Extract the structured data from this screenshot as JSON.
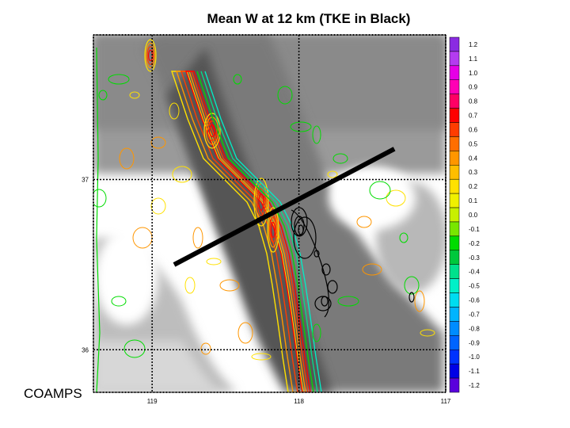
{
  "chart_data": {
    "type": "heatmap",
    "title": "Mean W at 12 km (TKE in Black)",
    "footer_label": "COAMPS",
    "x_axis": {
      "ticks": [
        {
          "label": "119",
          "lon": 119
        },
        {
          "label": "118",
          "lon": 118
        },
        {
          "label": "117",
          "lon": 117
        }
      ],
      "lim": [
        119.4,
        117
      ]
    },
    "y_axis": {
      "ticks": [
        {
          "label": "37",
          "lat": 37
        },
        {
          "label": "36",
          "lat": 36
        }
      ],
      "lim": [
        35.75,
        37.85
      ]
    },
    "grid": true,
    "colorbar": {
      "position": "right",
      "levels": [
        {
          "label": "1.2",
          "value": 1.2,
          "color": "#8a2be2"
        },
        {
          "label": "1.1",
          "value": 1.1,
          "color": "#b43cf0"
        },
        {
          "label": "1.0",
          "value": 1.0,
          "color": "#e600e6"
        },
        {
          "label": "0.9",
          "value": 0.9,
          "color": "#ff00b4"
        },
        {
          "label": "0.8",
          "value": 0.8,
          "color": "#ff0064"
        },
        {
          "label": "0.7",
          "value": 0.7,
          "color": "#ff0000"
        },
        {
          "label": "0.6",
          "value": 0.6,
          "color": "#ff3c00"
        },
        {
          "label": "0.5",
          "value": 0.5,
          "color": "#ff6e00"
        },
        {
          "label": "0.4",
          "value": 0.4,
          "color": "#ff9600"
        },
        {
          "label": "0.3",
          "value": 0.3,
          "color": "#ffbe00"
        },
        {
          "label": "0.2",
          "value": 0.2,
          "color": "#ffe100"
        },
        {
          "label": "0.1",
          "value": 0.1,
          "color": "#f0f000"
        },
        {
          "label": "0.0",
          "value": 0.0,
          "color": "#c8f000"
        },
        {
          "label": "-0.1",
          "value": -0.1,
          "color": "#78e600"
        },
        {
          "label": "-0.2",
          "value": -0.2,
          "color": "#00dc00"
        },
        {
          "label": "-0.3",
          "value": -0.3,
          "color": "#00c83c"
        },
        {
          "label": "-0.4",
          "value": -0.4,
          "color": "#00e18c"
        },
        {
          "label": "-0.5",
          "value": -0.5,
          "color": "#00f0c8"
        },
        {
          "label": "-0.6",
          "value": -0.6,
          "color": "#00dcf0"
        },
        {
          "label": "-0.7",
          "value": -0.7,
          "color": "#00b4ff"
        },
        {
          "label": "-0.8",
          "value": -0.8,
          "color": "#008cff"
        },
        {
          "label": "-0.9",
          "value": -0.9,
          "color": "#0064ff"
        },
        {
          "label": "-1.0",
          "value": -1.0,
          "color": "#0032ff"
        },
        {
          "label": "-1.1",
          "value": -1.1,
          "color": "#0000e6"
        },
        {
          "label": "-1.2",
          "value": -1.2,
          "color": "#5a00dc"
        }
      ]
    },
    "cross_section_line": {
      "start": {
        "lon": 118.85,
        "lat": 36.5
      },
      "end": {
        "lon": 117.35,
        "lat": 37.18
      },
      "color": "#000000"
    },
    "updraft_band_colors": [
      "#ffe100",
      "#ff9600",
      "#ff3c00",
      "#ff0000"
    ],
    "downdraft_band_colors": [
      "#00dc00",
      "#00e18c",
      "#00f0c8"
    ],
    "tke_contour_color": "#000000"
  }
}
